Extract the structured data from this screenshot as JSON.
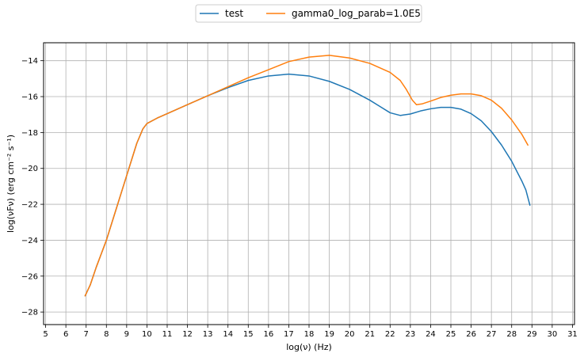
{
  "chart_data": {
    "type": "line",
    "title": "",
    "xlabel": "log(ν)  (Hz)",
    "ylabel": "log(νFν)  (erg cm⁻²  s⁻¹)",
    "xlim": [
      4.9,
      31.1
    ],
    "ylim": [
      -28.7,
      -13.0
    ],
    "xticks": [
      5,
      6,
      7,
      8,
      9,
      10,
      11,
      12,
      13,
      14,
      15,
      16,
      17,
      18,
      19,
      20,
      21,
      22,
      23,
      24,
      25,
      26,
      27,
      28,
      29,
      30,
      31
    ],
    "yticks": [
      -28,
      -26,
      -24,
      -22,
      -20,
      -18,
      -16,
      -14
    ],
    "grid": true,
    "legend_position": "top-center",
    "series": [
      {
        "name": "test",
        "color": "#1f77b4",
        "points": [
          [
            6.95,
            -27.1
          ],
          [
            7.2,
            -26.5
          ],
          [
            7.5,
            -25.5
          ],
          [
            8.0,
            -24.0
          ],
          [
            8.5,
            -22.2
          ],
          [
            9.0,
            -20.4
          ],
          [
            9.5,
            -18.6
          ],
          [
            9.8,
            -17.8
          ],
          [
            10.0,
            -17.5
          ],
          [
            10.5,
            -17.2
          ],
          [
            11.0,
            -16.95
          ],
          [
            12.0,
            -16.45
          ],
          [
            13.0,
            -15.95
          ],
          [
            14.0,
            -15.5
          ],
          [
            15.0,
            -15.1
          ],
          [
            16.0,
            -14.85
          ],
          [
            17.0,
            -14.75
          ],
          [
            18.0,
            -14.85
          ],
          [
            19.0,
            -15.15
          ],
          [
            20.0,
            -15.6
          ],
          [
            21.0,
            -16.2
          ],
          [
            21.5,
            -16.55
          ],
          [
            22.0,
            -16.9
          ],
          [
            22.5,
            -17.05
          ],
          [
            23.0,
            -16.97
          ],
          [
            23.5,
            -16.8
          ],
          [
            24.0,
            -16.68
          ],
          [
            24.5,
            -16.6
          ],
          [
            25.0,
            -16.6
          ],
          [
            25.5,
            -16.7
          ],
          [
            26.0,
            -16.95
          ],
          [
            26.5,
            -17.35
          ],
          [
            27.0,
            -17.95
          ],
          [
            27.5,
            -18.7
          ],
          [
            28.0,
            -19.6
          ],
          [
            28.5,
            -20.7
          ],
          [
            28.7,
            -21.2
          ],
          [
            28.9,
            -22.05
          ]
        ]
      },
      {
        "name": "gamma0_log_parab=1.0E5",
        "color": "#ff7f0e",
        "points": [
          [
            6.95,
            -27.1
          ],
          [
            7.2,
            -26.5
          ],
          [
            7.5,
            -25.5
          ],
          [
            8.0,
            -24.0
          ],
          [
            8.5,
            -22.2
          ],
          [
            9.0,
            -20.4
          ],
          [
            9.5,
            -18.6
          ],
          [
            9.8,
            -17.8
          ],
          [
            10.0,
            -17.5
          ],
          [
            10.5,
            -17.2
          ],
          [
            11.0,
            -16.95
          ],
          [
            12.0,
            -16.45
          ],
          [
            13.0,
            -15.95
          ],
          [
            14.0,
            -15.45
          ],
          [
            15.0,
            -14.95
          ],
          [
            16.0,
            -14.5
          ],
          [
            17.0,
            -14.05
          ],
          [
            18.0,
            -13.8
          ],
          [
            19.0,
            -13.7
          ],
          [
            20.0,
            -13.85
          ],
          [
            21.0,
            -14.15
          ],
          [
            22.0,
            -14.65
          ],
          [
            22.5,
            -15.1
          ],
          [
            22.8,
            -15.6
          ],
          [
            23.1,
            -16.2
          ],
          [
            23.3,
            -16.45
          ],
          [
            23.6,
            -16.4
          ],
          [
            24.0,
            -16.25
          ],
          [
            24.5,
            -16.05
          ],
          [
            25.0,
            -15.92
          ],
          [
            25.5,
            -15.85
          ],
          [
            26.0,
            -15.85
          ],
          [
            26.5,
            -15.95
          ],
          [
            27.0,
            -16.2
          ],
          [
            27.5,
            -16.65
          ],
          [
            28.0,
            -17.3
          ],
          [
            28.5,
            -18.1
          ],
          [
            28.8,
            -18.7
          ]
        ]
      }
    ]
  }
}
